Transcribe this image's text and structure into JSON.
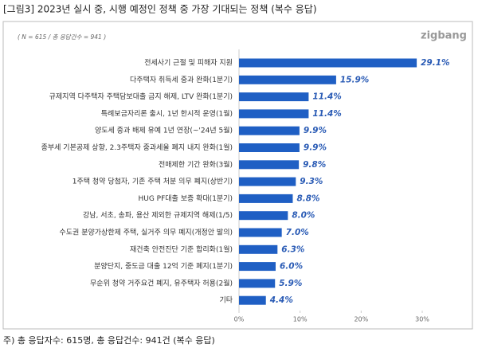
{
  "chart_data": {
    "type": "bar",
    "orientation": "horizontal",
    "title": "[그림3] 2023년 실시 중, 시행 예정인 정책 중 가장 기대되는 정책 (복수 응답)",
    "subtitle": "( N = 615 / 총 응답건수 = 941 )",
    "logo": "zigbang",
    "footnote": "주) 총 응답자수: 615명, 총 응답건수: 941건 (복수 응답)",
    "categories": [
      "전세사기 근절 및 피해자 지원",
      "다주택자 취득세 중과 완화(1분기)",
      "규제지역 다주택자 주택담보대출 금지 해제, LTV 완화(1분기)",
      "특례보금자리론 출시, 1년 한시적 운영(1월)",
      "양도세 중과 배제 유예 1년 연장(~'24년 5월)",
      "종부세 기본공제 상향, 2.3주택자 중과세율 폐지 내지 완화(1월)",
      "전매제한 기간 완화(3월)",
      "1주택 청약 당첨자, 기존 주택 처분 의무 폐지(상반기)",
      "HUG PF대출 보증 확대(1분기)",
      "강남, 서초, 송파, 용산 제외한 규제지역 해제(1/5)",
      "수도권 분양가상한제 주택, 실거주 의무 폐지(개정안 발의)",
      "재건축 안전진단 기준 합리화(1월)",
      "분양단지, 중도금 대출 12억 기준 폐지(1분기)",
      "무순위 청약 거주요건 폐지, 유주택자 허용(2월)",
      "기타"
    ],
    "values": [
      29.1,
      15.9,
      11.4,
      11.4,
      9.9,
      9.9,
      9.8,
      9.3,
      8.8,
      8.0,
      7.0,
      6.3,
      6.0,
      5.9,
      4.4
    ],
    "value_labels": [
      "29.1%",
      "15.9%",
      "11.4%",
      "11.4%",
      "9.9%",
      "9.9%",
      "9.8%",
      "9.3%",
      "8.8%",
      "8.0%",
      "7.0%",
      "6.3%",
      "6.0%",
      "5.9%",
      "4.4%"
    ],
    "color": "#1f5fc4",
    "xlim": [
      0,
      30
    ],
    "xticks": [
      {
        "value": 0,
        "label": "0%"
      },
      {
        "value": 10,
        "label": "10%"
      },
      {
        "value": 20,
        "label": "20%"
      },
      {
        "value": 30,
        "label": "30%"
      }
    ]
  }
}
